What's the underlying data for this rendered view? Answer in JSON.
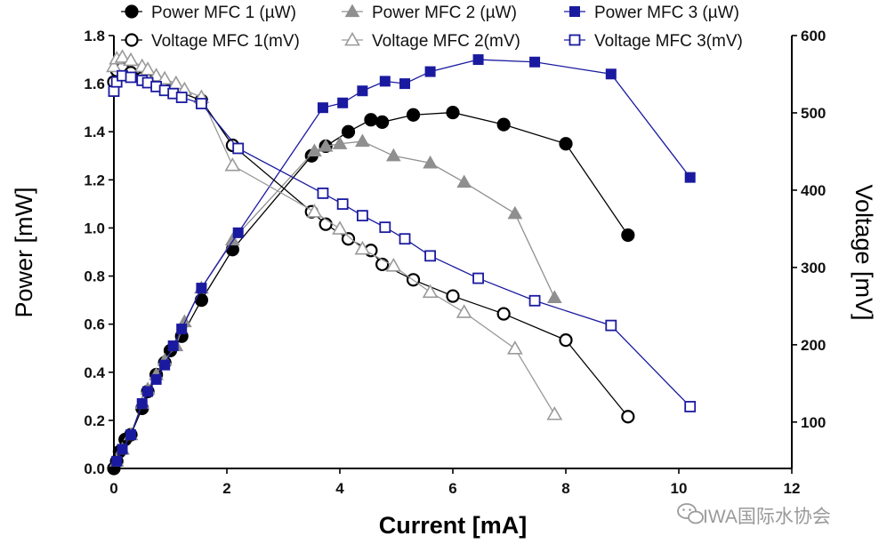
{
  "chart_data": {
    "type": "line",
    "xlabel": "Current [mA]",
    "ylabel": "Power [mW]",
    "y2label": "Voltage [mV]",
    "xlim": [
      0,
      12
    ],
    "ylim": [
      0,
      1.8
    ],
    "y2lim": [
      40,
      600
    ],
    "xticks": [
      "0",
      "2",
      "4",
      "6",
      "8",
      "10",
      "12"
    ],
    "yticks": [
      "0.0",
      "0.2",
      "0.4",
      "0.6",
      "0.8",
      "1.0",
      "1.2",
      "1.4",
      "1.6",
      "1.8"
    ],
    "y2ticks": [
      "100",
      "200",
      "300",
      "400",
      "500",
      "600"
    ],
    "legend_position": "top",
    "grid": false,
    "series": [
      {
        "name": "Power MFC 1 (µW)",
        "axis": "left",
        "marker": "filled-circle",
        "color": "#000000",
        "x": [
          0.0,
          0.05,
          0.1,
          0.2,
          0.3,
          0.5,
          0.6,
          0.75,
          0.9,
          1.0,
          1.2,
          1.55,
          2.1,
          3.5,
          3.75,
          4.15,
          4.55,
          4.75,
          5.3,
          6.0,
          6.9,
          8.0,
          9.1
        ],
        "y": [
          0.0,
          0.03,
          0.07,
          0.12,
          0.14,
          0.25,
          0.32,
          0.39,
          0.44,
          0.49,
          0.55,
          0.7,
          0.91,
          1.3,
          1.34,
          1.4,
          1.45,
          1.44,
          1.47,
          1.48,
          1.43,
          1.35,
          0.97
        ]
      },
      {
        "name": "Power MFC 2 (µW)",
        "axis": "left",
        "marker": "filled-triangle",
        "color": "#8f8f8f",
        "x": [
          0.05,
          0.15,
          0.3,
          0.5,
          0.6,
          0.75,
          0.9,
          1.1,
          1.25,
          1.55,
          2.1,
          3.55,
          3.75,
          4.0,
          4.4,
          4.95,
          5.6,
          6.2,
          7.1,
          7.8
        ],
        "y": [
          0.03,
          0.08,
          0.14,
          0.27,
          0.33,
          0.39,
          0.45,
          0.51,
          0.61,
          0.75,
          0.95,
          1.32,
          1.34,
          1.35,
          1.36,
          1.3,
          1.27,
          1.19,
          1.06,
          0.71
        ]
      },
      {
        "name": "Power MFC 3 (µW)",
        "axis": "left",
        "marker": "filled-square",
        "color": "#1a1aa0",
        "x": [
          0.05,
          0.15,
          0.3,
          0.5,
          0.6,
          0.75,
          0.9,
          1.05,
          1.2,
          1.55,
          2.2,
          3.7,
          4.05,
          4.4,
          4.8,
          5.15,
          5.6,
          6.45,
          7.45,
          8.8,
          10.2
        ],
        "y": [
          0.03,
          0.08,
          0.14,
          0.27,
          0.32,
          0.37,
          0.43,
          0.51,
          0.58,
          0.75,
          0.98,
          1.5,
          1.52,
          1.57,
          1.61,
          1.6,
          1.65,
          1.7,
          1.69,
          1.64,
          1.21
        ]
      },
      {
        "name": "Voltage MFC 1(mV)",
        "axis": "right",
        "marker": "open-circle",
        "color": "#000000",
        "x": [
          0.0,
          0.05,
          0.15,
          0.3,
          0.5,
          0.6,
          0.75,
          0.9,
          1.0,
          1.2,
          1.55,
          2.1,
          3.5,
          3.75,
          4.15,
          4.55,
          4.75,
          5.3,
          6.0,
          6.9,
          8.0,
          9.1
        ],
        "y": [
          540,
          555,
          558,
          552,
          545,
          542,
          538,
          534,
          530,
          526,
          516,
          458,
          372,
          356,
          337,
          322,
          304,
          284,
          263,
          240,
          206,
          107
        ]
      },
      {
        "name": "Voltage MFC 2(mV)",
        "axis": "right",
        "marker": "open-triangle",
        "color": "#9a9a9a",
        "x": [
          0.0,
          0.05,
          0.15,
          0.3,
          0.5,
          0.6,
          0.75,
          0.9,
          1.1,
          1.25,
          1.55,
          2.1,
          3.55,
          4.0,
          4.4,
          4.95,
          5.6,
          6.2,
          7.1,
          7.8
        ],
        "y": [
          560,
          570,
          572,
          568,
          560,
          556,
          548,
          544,
          538,
          530,
          520,
          432,
          372,
          350,
          324,
          302,
          268,
          242,
          195,
          110
        ]
      },
      {
        "name": "Voltage MFC 3(mV)",
        "axis": "right",
        "marker": "open-square",
        "color": "#1a1aa0",
        "x": [
          0.0,
          0.05,
          0.15,
          0.3,
          0.5,
          0.6,
          0.75,
          0.9,
          1.05,
          1.2,
          1.55,
          2.2,
          3.7,
          4.05,
          4.4,
          4.8,
          5.15,
          5.6,
          6.45,
          7.45,
          8.8,
          10.2
        ],
        "y": [
          528,
          540,
          548,
          546,
          542,
          539,
          534,
          529,
          525,
          520,
          512,
          454,
          396,
          382,
          367,
          352,
          337,
          315,
          286,
          257,
          225,
          120
        ]
      }
    ]
  },
  "watermark": "IWA国际水协会",
  "icons": {
    "watermark": "wechat-icon"
  }
}
